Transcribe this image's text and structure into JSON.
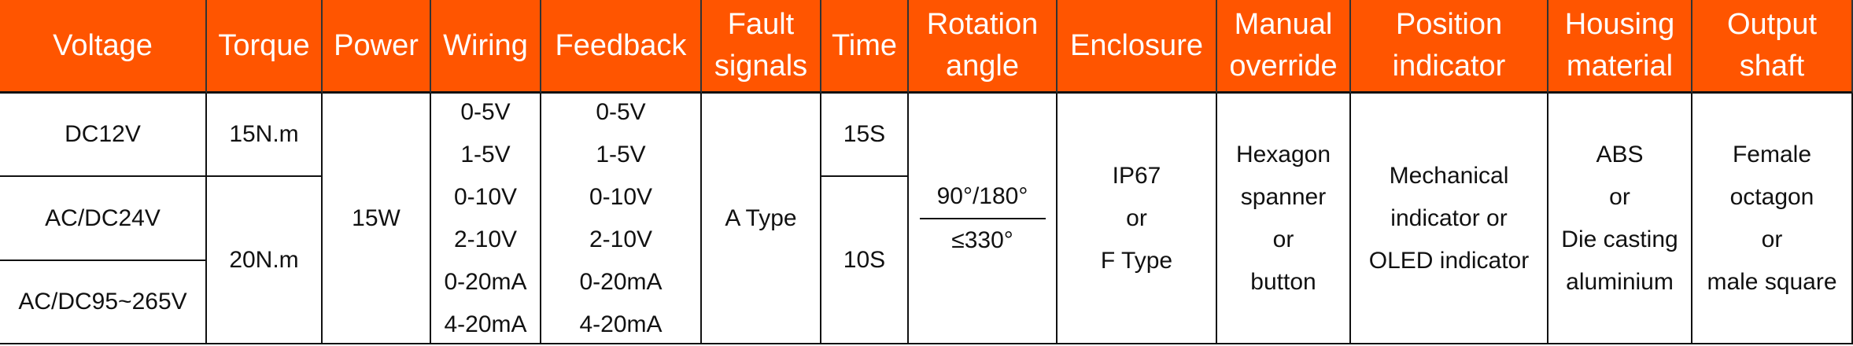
{
  "table": {
    "columns": [
      {
        "header": [
          "Voltage"
        ],
        "cells": [
          [
            "DC12V"
          ],
          [
            "AC/DC24V"
          ],
          [
            "AC/DC95~265V"
          ]
        ]
      },
      {
        "header": [
          "Torque"
        ],
        "cells": [
          [
            "15N.m"
          ],
          [
            "20N.m"
          ]
        ]
      },
      {
        "header": [
          "Power"
        ],
        "cells": [
          [
            "15W"
          ]
        ]
      },
      {
        "header": [
          "Wiring"
        ],
        "cells": [
          [
            "0-5V",
            "1-5V",
            "0-10V",
            "2-10V",
            "0-20mA",
            "4-20mA"
          ]
        ]
      },
      {
        "header": [
          "Feedback"
        ],
        "cells": [
          [
            "0-5V",
            "1-5V",
            "0-10V",
            "2-10V",
            "0-20mA",
            "4-20mA"
          ]
        ]
      },
      {
        "header": [
          "Fault",
          "signals"
        ],
        "cells": [
          [
            "A Type"
          ]
        ]
      },
      {
        "header": [
          "Time"
        ],
        "cells": [
          [
            "15S"
          ],
          [
            "10S"
          ]
        ]
      },
      {
        "header": [
          "Rotation",
          "angle"
        ],
        "cells": [
          [
            "90°/180°",
            "≤330°"
          ]
        ]
      },
      {
        "header": [
          "Enclosure"
        ],
        "cells": [
          [
            "IP67",
            "or",
            "F Type"
          ]
        ]
      },
      {
        "header": [
          "Manual",
          "override"
        ],
        "cells": [
          [
            "Hexagon",
            "spanner",
            "or",
            "button"
          ]
        ]
      },
      {
        "header": [
          "Position",
          "indicator"
        ],
        "cells": [
          [
            "Mechanical",
            "indicator or",
            "OLED indicator"
          ]
        ]
      },
      {
        "header": [
          "Housing",
          "material"
        ],
        "cells": [
          [
            "ABS",
            "or",
            "Die casting",
            "aluminium"
          ]
        ]
      },
      {
        "header": [
          "Output",
          "shaft"
        ],
        "cells": [
          [
            "Female",
            "octagon",
            "or",
            "male square"
          ]
        ]
      }
    ]
  }
}
